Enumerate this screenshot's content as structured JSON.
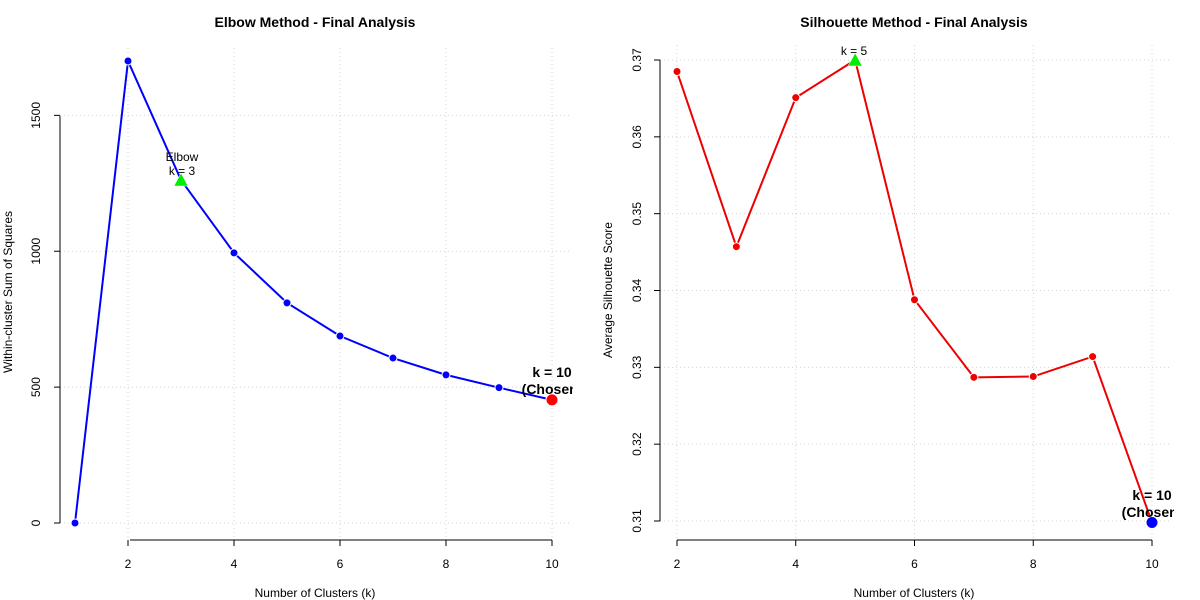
{
  "colors": {
    "elbow_series": "#0000ff",
    "silhouette_series": "#ee0000",
    "marker_green": "#00ee00",
    "chosen_red": "#ff0000",
    "chosen_blue": "#0000ff",
    "grid": "#d3d3d3"
  },
  "chart_data": [
    {
      "type": "line",
      "title": "Elbow Method - Final Analysis",
      "xlabel": "Number of Clusters (k)",
      "ylabel": "Within-cluster Sum of Squares",
      "xlim": [
        1,
        10
      ],
      "ylim": [
        0,
        1700
      ],
      "xticks": [
        2,
        4,
        6,
        8,
        10
      ],
      "yticks": [
        0,
        500,
        1000,
        1500
      ],
      "grid": true,
      "series": [
        {
          "name": "WSS",
          "x": [
            1,
            2,
            3,
            4,
            5,
            6,
            7,
            8,
            9,
            10
          ],
          "values": [
            0,
            1700,
            1262,
            994,
            810,
            688,
            607,
            545,
            498,
            453
          ]
        }
      ],
      "highlight": {
        "label_line1": "Elbow",
        "label_line2": "k = 3",
        "x": 3,
        "y": 1262
      },
      "chosen": {
        "label_line1": "k = 10",
        "label_line2": "(Chosen)",
        "x": 10,
        "y": 453
      }
    },
    {
      "type": "line",
      "title": "Silhouette Method - Final Analysis",
      "xlabel": "Number of Clusters (k)",
      "ylabel": "Average Silhouette Score",
      "xlim": [
        2,
        10
      ],
      "ylim": [
        0.31,
        0.37
      ],
      "xticks": [
        2,
        4,
        6,
        8,
        10
      ],
      "yticks": [
        "0.31",
        "0.32",
        "0.33",
        "0.34",
        "0.35",
        "0.36",
        "0.37"
      ],
      "grid": true,
      "series": [
        {
          "name": "Silhouette",
          "x": [
            2,
            3,
            4,
            5,
            6,
            7,
            8,
            9,
            10
          ],
          "values": [
            0.3685,
            0.3457,
            0.3651,
            0.37,
            0.3388,
            0.3287,
            0.3288,
            0.3314,
            0.3098
          ]
        }
      ],
      "highlight": {
        "label_line1": "k = 5",
        "x": 5,
        "y": 0.37
      },
      "chosen": {
        "label_line1": "k = 10",
        "label_line2": "(Chosen)",
        "x": 10,
        "y": 0.3098
      }
    }
  ]
}
